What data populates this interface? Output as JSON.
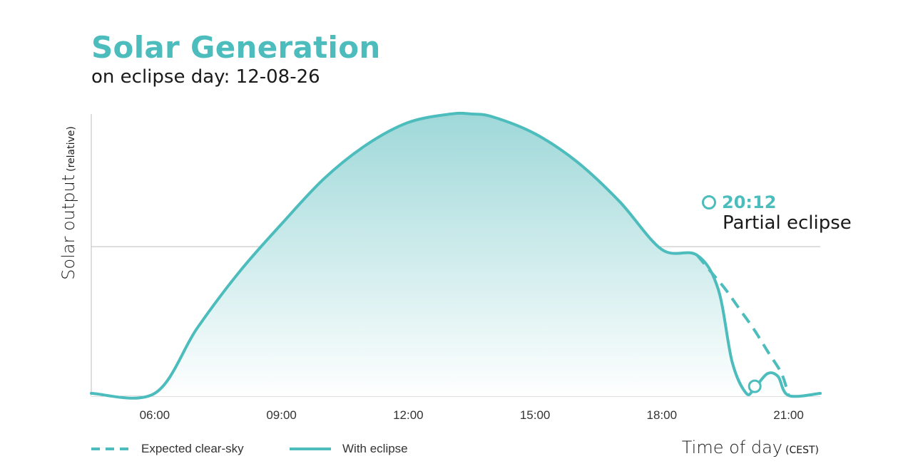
{
  "header": {
    "title": "Solar Generation",
    "subtitle": "on eclipse day: 12-08-26"
  },
  "colors": {
    "accent": "#4cbcbc",
    "fill_top": "#9fd8d9",
    "text": "#1a1a1a",
    "grid": "#bdbdbd"
  },
  "legend": {
    "expected_label": "Expected clear-sky",
    "eclipse_label": "With eclipse"
  },
  "annotation": {
    "time": "20:12",
    "label": "Partial eclipse"
  },
  "chart_data": {
    "type": "line",
    "title": "Solar Generation",
    "subtitle": "on eclipse day: 12-08-26",
    "xlabel": "Time of day",
    "xlabel_unit": "(CEST)",
    "ylabel": "Solar output",
    "ylabel_unit": "(relative)",
    "x_ticks": [
      "06:00",
      "09:00",
      "12:00",
      "15:00",
      "18:00",
      "21:00"
    ],
    "xlim": [
      "04:30",
      "21:45"
    ],
    "ylim": [
      0,
      1
    ],
    "gridline_y": 0.53,
    "grid": false,
    "legend_position": "bottom-left",
    "series": [
      {
        "name": "Expected clear-sky",
        "style": "dashed",
        "x": [
          "18:50",
          "19:10",
          "19:30",
          "19:50",
          "20:10",
          "20:30",
          "20:50",
          "21:00"
        ],
        "y": [
          0.5,
          0.44,
          0.38,
          0.31,
          0.24,
          0.16,
          0.08,
          0.0
        ]
      },
      {
        "name": "With eclipse",
        "style": "solid",
        "x": [
          "04:30",
          "06:00",
          "07:00",
          "08:00",
          "09:00",
          "10:00",
          "11:00",
          "12:00",
          "13:00",
          "13:30",
          "14:00",
          "15:00",
          "16:00",
          "17:00",
          "18:00",
          "18:50",
          "19:20",
          "19:40",
          "20:00",
          "20:12",
          "20:30",
          "20:45",
          "21:00",
          "21:45"
        ],
        "y": [
          0.01,
          0.01,
          0.24,
          0.44,
          0.61,
          0.77,
          0.89,
          0.97,
          1.0,
          1.0,
          0.99,
          0.93,
          0.83,
          0.69,
          0.52,
          0.5,
          0.38,
          0.12,
          0.01,
          0.03,
          0.08,
          0.07,
          0.0,
          0.01
        ]
      }
    ]
  }
}
